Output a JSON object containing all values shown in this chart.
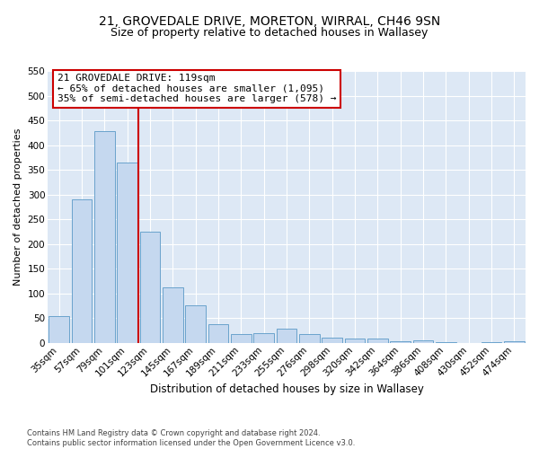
{
  "title1": "21, GROVEDALE DRIVE, MORETON, WIRRAL, CH46 9SN",
  "title2": "Size of property relative to detached houses in Wallasey",
  "xlabel": "Distribution of detached houses by size in Wallasey",
  "ylabel": "Number of detached properties",
  "categories": [
    "35sqm",
    "57sqm",
    "79sqm",
    "101sqm",
    "123sqm",
    "145sqm",
    "167sqm",
    "189sqm",
    "211sqm",
    "233sqm",
    "255sqm",
    "276sqm",
    "298sqm",
    "320sqm",
    "342sqm",
    "364sqm",
    "386sqm",
    "408sqm",
    "430sqm",
    "452sqm",
    "474sqm"
  ],
  "values": [
    55,
    290,
    428,
    365,
    225,
    113,
    76,
    38,
    17,
    20,
    29,
    17,
    10,
    9,
    8,
    3,
    5,
    2,
    0,
    1,
    4
  ],
  "bar_color": "#c5d8ef",
  "bar_edge_color": "#6aa3cc",
  "property_line_x": 4,
  "property_line_color": "#cc0000",
  "annotation_text": "21 GROVEDALE DRIVE: 119sqm\n← 65% of detached houses are smaller (1,095)\n35% of semi-detached houses are larger (578) →",
  "annotation_box_color": "#ffffff",
  "annotation_box_edge": "#cc0000",
  "ylim": [
    0,
    550
  ],
  "yticks": [
    0,
    50,
    100,
    150,
    200,
    250,
    300,
    350,
    400,
    450,
    500,
    550
  ],
  "background_color": "#ffffff",
  "plot_bg_color": "#dde8f5",
  "grid_color": "#ffffff",
  "footnote": "Contains HM Land Registry data © Crown copyright and database right 2024.\nContains public sector information licensed under the Open Government Licence v3.0.",
  "title1_fontsize": 10,
  "title2_fontsize": 9,
  "xlabel_fontsize": 8.5,
  "ylabel_fontsize": 8,
  "tick_fontsize": 7.5,
  "annot_fontsize": 8,
  "footnote_fontsize": 6
}
